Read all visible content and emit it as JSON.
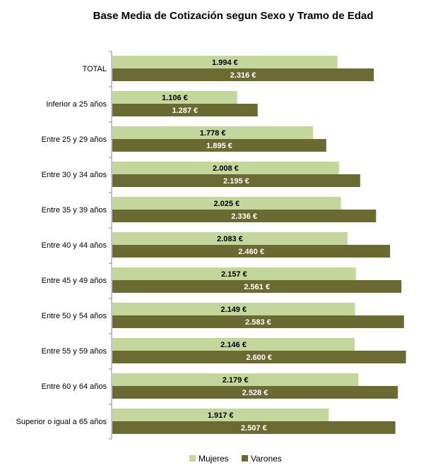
{
  "chart_data": {
    "type": "bar",
    "orientation": "horizontal",
    "title": "Base Media de Cotización segun Sexo y Tramo de Edad",
    "xlabel": "",
    "ylabel": "",
    "xlim": [
      0,
      2800
    ],
    "grid": false,
    "legend_position": "bottom",
    "categories": [
      "TOTAL",
      "Inferior a 25 años",
      "Entre 25 y 29 años",
      "Entre 30 y 34 años",
      "Entre 35 y 39 años",
      "Entre 40 y 44 años",
      "Entre 45 y 49 años",
      "Entre 50 y 54 años",
      "Entre 55 y 59 años",
      "Entre 60 y 64 años",
      "Superior o igual a 65 años"
    ],
    "series": [
      {
        "name": "Mujeres",
        "color": "#c3d69b",
        "label_color": "#000000",
        "values": [
          1994,
          1106,
          1778,
          2008,
          2025,
          2083,
          2157,
          2149,
          2146,
          2179,
          1917
        ],
        "labels": [
          "1.994 €",
          "1.106 €",
          "1.778 €",
          "2.008 €",
          "2.025 €",
          "2.083 €",
          "2.157 €",
          "2.149 €",
          "2.146 €",
          "2.179 €",
          "1.917 €"
        ]
      },
      {
        "name": "Varones",
        "color": "#6b6a32",
        "label_color": "#ffffff",
        "values": [
          2316,
          1287,
          1895,
          2195,
          2336,
          2460,
          2561,
          2583,
          2600,
          2528,
          2507
        ],
        "labels": [
          "2.316 €",
          "1.287 €",
          "1.895 €",
          "2.195 €",
          "2.336 €",
          "2.460 €",
          "2.561 €",
          "2.583 €",
          "2.600 €",
          "2.528 €",
          "2.507 €"
        ]
      }
    ]
  }
}
